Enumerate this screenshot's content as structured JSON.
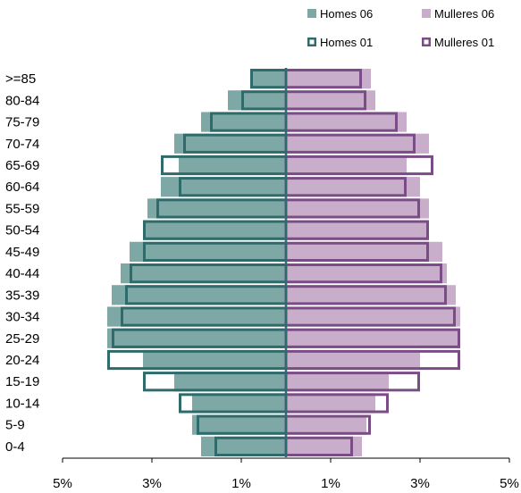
{
  "chart_data": {
    "type": "bar",
    "orientation": "horizontal",
    "layout": "population-pyramid",
    "categories": [
      "0-4",
      "5-9",
      "10-14",
      "15-19",
      "20-24",
      "25-29",
      "30-34",
      "35-39",
      "40-44",
      "45-49",
      "50-54",
      "55-59",
      "60-64",
      "65-69",
      "70-74",
      "75-79",
      "80-84",
      ">=85"
    ],
    "series": [
      {
        "name": "Homes 06",
        "side": "left",
        "style": "filled",
        "color": "#7ea8a6",
        "values": [
          1.9,
          2.1,
          2.1,
          2.5,
          3.2,
          4.0,
          4.0,
          3.9,
          3.7,
          3.5,
          3.2,
          3.1,
          2.8,
          2.4,
          2.5,
          1.9,
          1.3,
          0.8
        ]
      },
      {
        "name": "Mulleres 06",
        "side": "right",
        "style": "filled",
        "color": "#c9aecb",
        "values": [
          1.7,
          1.8,
          2.0,
          2.3,
          3.0,
          3.9,
          3.9,
          3.8,
          3.6,
          3.5,
          3.2,
          3.2,
          3.0,
          2.7,
          3.2,
          2.7,
          2.0,
          1.9
        ]
      },
      {
        "name": "Homes 01",
        "side": "left",
        "style": "outline",
        "color": "#2f6b6b",
        "values": [
          1.6,
          2.0,
          2.4,
          3.2,
          4.0,
          3.9,
          3.7,
          3.6,
          3.5,
          3.2,
          3.2,
          2.9,
          2.4,
          2.8,
          2.3,
          1.7,
          1.0,
          0.8
        ]
      },
      {
        "name": "Mulleres 01",
        "side": "right",
        "style": "outline",
        "color": "#7b4d86",
        "values": [
          1.5,
          1.9,
          2.3,
          3.0,
          3.9,
          3.9,
          3.8,
          3.6,
          3.5,
          3.2,
          3.2,
          3.0,
          2.7,
          3.3,
          2.9,
          2.5,
          1.8,
          1.7
        ]
      }
    ],
    "x_ticks": [
      {
        "value": -5,
        "label": "5%"
      },
      {
        "value": -3,
        "label": "3%"
      },
      {
        "value": -1,
        "label": "1%"
      },
      {
        "value": 1,
        "label": "1%"
      },
      {
        "value": 3,
        "label": "3%"
      },
      {
        "value": 5,
        "label": "5%"
      }
    ],
    "xlim": [
      -5,
      5
    ],
    "title": "",
    "xlabel": "",
    "ylabel": "",
    "grid": false,
    "legend_position": "top-right"
  }
}
